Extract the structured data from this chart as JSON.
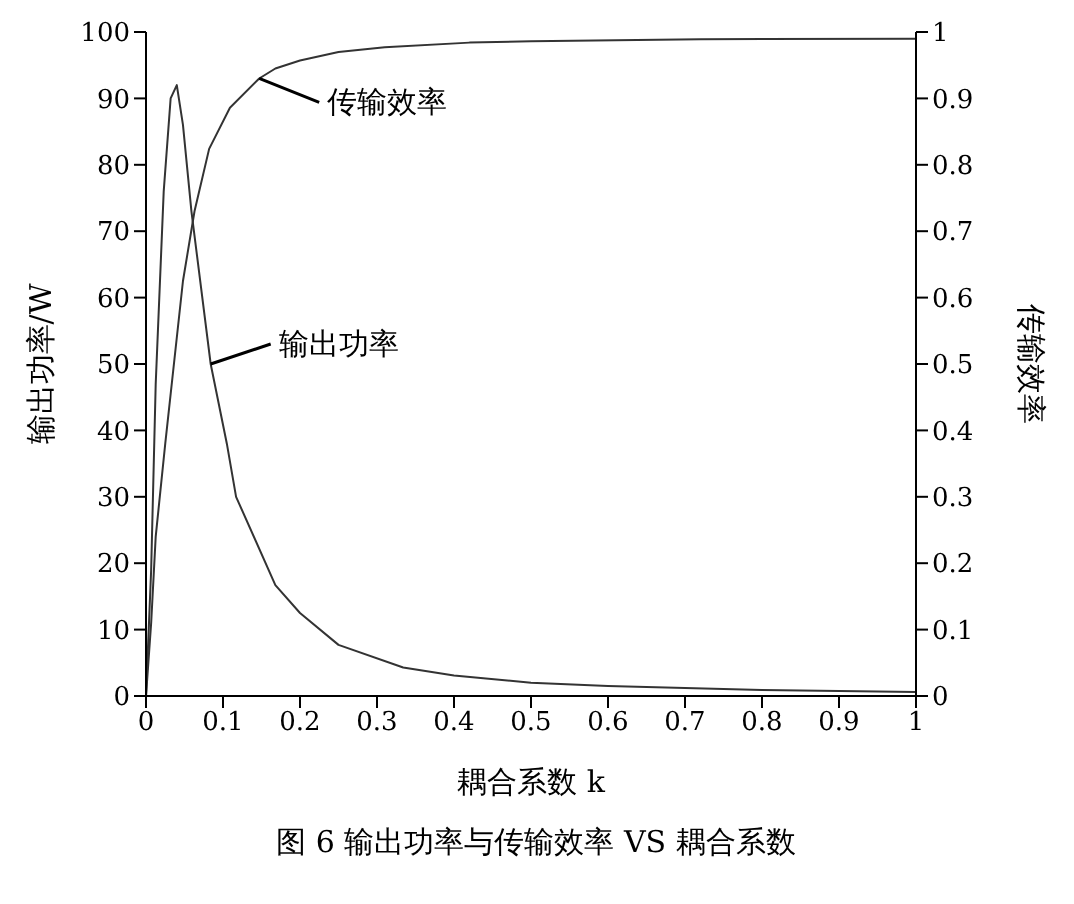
{
  "chart_data": {
    "type": "line",
    "xlabel": "耦合系数 k",
    "ylabel": "输出功率/W",
    "y2label": "传输效率",
    "xlim": [
      0,
      1
    ],
    "xticks": [
      0,
      0.1,
      0.2,
      0.3,
      0.4,
      0.5,
      0.6,
      0.7,
      0.8,
      0.9,
      1
    ],
    "ylim": [
      0,
      100
    ],
    "yticks": [
      0,
      10,
      20,
      30,
      40,
      50,
      60,
      70,
      80,
      90,
      100
    ],
    "y2lim": [
      0,
      1
    ],
    "y2ticks": [
      0,
      0.1,
      0.2,
      0.3,
      0.4,
      0.5,
      0.6,
      0.7,
      0.8,
      0.9,
      1
    ],
    "grid": false,
    "legend": false,
    "marker": "none",
    "line_style": "solid",
    "series": [
      {
        "name": "输出功率",
        "color": "#333333",
        "x": [
          0,
          0.0067,
          0.0126,
          0.023,
          0.032,
          0.04,
          0.048,
          0.059,
          0.084,
          0.105,
          0.117,
          0.168,
          0.2,
          0.25,
          0.334,
          0.4,
          0.5,
          0.6,
          0.8,
          1
        ],
        "values": [
          0,
          19,
          47,
          76,
          90,
          92,
          86,
          73,
          50,
          38,
          30,
          16.7,
          12.5,
          7.7,
          4.3,
          3.1,
          2.0,
          1.5,
          0.9,
          0.6
        ]
      },
      {
        "name": "传输效率",
        "axis": "y2",
        "color": "#333333",
        "x": [
          0,
          0.0067,
          0.0126,
          0.025,
          0.048,
          0.063,
          0.082,
          0.109,
          0.147,
          0.168,
          0.2,
          0.25,
          0.31,
          0.42,
          0.5,
          0.72,
          1
        ],
        "values": [
          0,
          0.11,
          0.24,
          0.38,
          0.625,
          0.73,
          0.824,
          0.886,
          0.93,
          0.945,
          0.957,
          0.97,
          0.977,
          0.984,
          0.986,
          0.989,
          0.99
        ]
      }
    ],
    "annotations": [
      "图 6  输出功率与传输效率 VS 耦合系数"
    ]
  }
}
